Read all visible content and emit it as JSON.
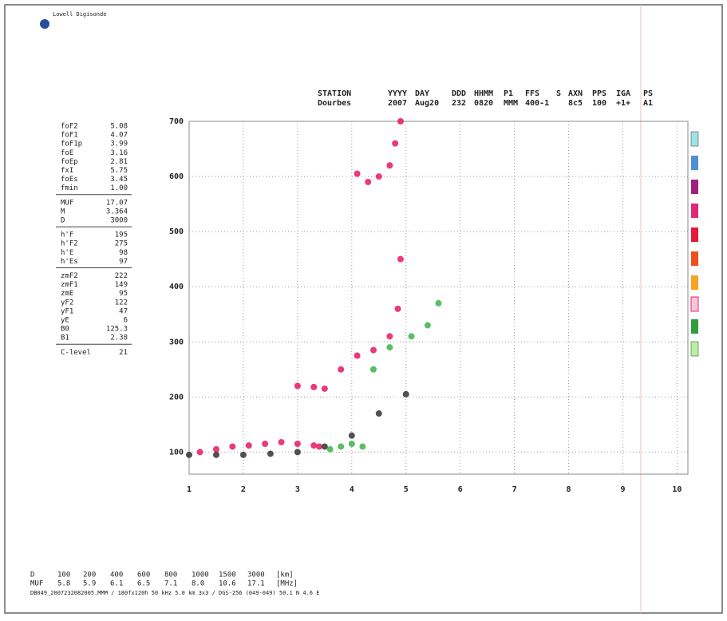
{
  "header": {
    "title": "Lowell Digisonde"
  },
  "station": {
    "labels": [
      "STATION",
      "YYYY",
      "DAY",
      "DDD",
      "HHMM",
      "P1",
      "FFS",
      "S",
      "AXN",
      "PPS",
      "IGA",
      "PS"
    ],
    "values": [
      "Dourbes",
      "2007",
      "Aug20",
      "232",
      "0820",
      "MMM",
      "400-1",
      "8c5",
      "100",
      "+1+",
      "A1"
    ]
  },
  "parameters": [
    [
      [
        "foF2",
        "5.08"
      ],
      [
        "foF1",
        "4.07"
      ],
      [
        "foF1p",
        "3.99"
      ],
      [
        "foE",
        "3.16"
      ],
      [
        "foEp",
        "2.81"
      ],
      [
        "fxI",
        "5.75"
      ],
      [
        "foEs",
        "3.45"
      ],
      [
        "fmin",
        "1.00"
      ]
    ],
    [
      [
        "MUF",
        "17.07"
      ],
      [
        "M",
        "3.364"
      ],
      [
        "D",
        "3000"
      ]
    ],
    [
      [
        "h'F",
        "195"
      ],
      [
        "h'F2",
        "275"
      ],
      [
        "h'E",
        "98"
      ],
      [
        "h'Es",
        "97"
      ]
    ],
    [
      [
        "zmF2",
        "222"
      ],
      [
        "zmF1",
        "149"
      ],
      [
        "zmE",
        "95"
      ],
      [
        "yF2",
        "122"
      ],
      [
        "yF1",
        "47"
      ],
      [
        "yE",
        "6"
      ],
      [
        "B0",
        "125.3"
      ],
      [
        "B1",
        "2.38"
      ]
    ],
    [
      [
        "C-level",
        "21"
      ]
    ]
  ],
  "chart_data": {
    "type": "scatter",
    "xlim": [
      1,
      10.2
    ],
    "ylim": [
      60,
      700
    ],
    "xticks": [
      1,
      2,
      3,
      4,
      5,
      6,
      7,
      8,
      9,
      10
    ],
    "yticks": [
      100,
      200,
      300,
      400,
      500,
      600,
      700
    ],
    "grid": true,
    "series": [
      {
        "color": "#e8175d",
        "x": [
          1.2,
          1.5,
          1.8,
          2.1,
          2.4,
          2.7,
          3.0,
          3.3,
          3.4
        ],
        "values": [
          100,
          105,
          110,
          112,
          115,
          118,
          115,
          112,
          110
        ]
      },
      {
        "color": "#e8175d",
        "x": [
          3.0,
          3.3,
          3.5,
          3.8,
          4.1,
          4.4,
          4.7,
          4.85,
          4.9
        ],
        "values": [
          220,
          218,
          215,
          250,
          275,
          285,
          310,
          360,
          450
        ]
      },
      {
        "color": "#e8175d",
        "x": [
          4.1,
          4.3,
          4.5,
          4.7,
          4.8,
          4.9
        ],
        "values": [
          605,
          590,
          600,
          620,
          660,
          700
        ]
      },
      {
        "color": "#3cb44b",
        "x": [
          3.6,
          3.8,
          4.0,
          4.2,
          4.4,
          4.7,
          5.1,
          5.4,
          5.6
        ],
        "values": [
          105,
          110,
          115,
          110,
          250,
          290,
          310,
          330,
          370
        ]
      },
      {
        "color": "#333333",
        "x": [
          1.0,
          1.5,
          2.0,
          2.5,
          3.0,
          3.5,
          4.0,
          4.5,
          5.0
        ],
        "values": [
          95,
          95,
          95,
          97,
          100,
          110,
          130,
          170,
          205
        ]
      }
    ]
  },
  "bottom": {
    "rows": [
      [
        "D",
        "100",
        "200",
        "400",
        "600",
        "800",
        "1000",
        "1500",
        "3000",
        "[km]"
      ],
      [
        "MUF",
        "5.8",
        "5.9",
        "6.1",
        "6.5",
        "7.1",
        "8.0",
        "10.6",
        "17.1",
        "[MHz]"
      ]
    ],
    "footer": "DB049_2007232082005.MMM / 180fx120h 50 kHz 5.0 km 3x3 / DGS-256 (049-049) 50.1 N 4.6 E"
  }
}
